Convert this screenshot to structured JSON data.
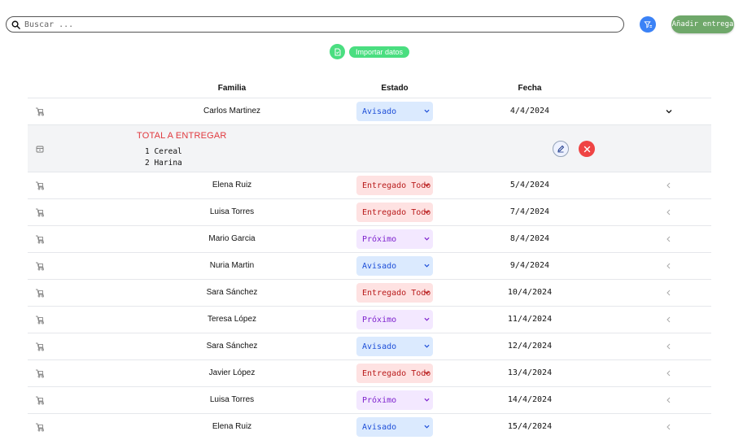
{
  "search": {
    "placeholder": "Buscar ..."
  },
  "toolbar": {
    "add_label": "Añadir entrega",
    "import_label": "Importar datos"
  },
  "table": {
    "headers": {
      "family": "Familia",
      "status": "Estado",
      "date": "Fecha"
    },
    "rows": [
      {
        "family": "Carlos Martinez",
        "status": "Avisado",
        "status_kind": "avisado",
        "date": "4/4/2024",
        "expanded": true
      },
      {
        "family": "Elena Ruiz",
        "status": "Entregado Todo",
        "status_kind": "entregado",
        "date": "5/4/2024"
      },
      {
        "family": "Luisa Torres",
        "status": "Entregado Todo",
        "status_kind": "entregado",
        "date": "7/4/2024"
      },
      {
        "family": "Mario Garcia",
        "status": "Próximo",
        "status_kind": "proximo",
        "date": "8/4/2024"
      },
      {
        "family": "Nuria Martin",
        "status": "Avisado",
        "status_kind": "avisado",
        "date": "9/4/2024"
      },
      {
        "family": "Sara Sánchez",
        "status": "Entregado Todo",
        "status_kind": "entregado",
        "date": "10/4/2024"
      },
      {
        "family": "Teresa López",
        "status": "Próximo",
        "status_kind": "proximo",
        "date": "11/4/2024"
      },
      {
        "family": "Sara Sánchez",
        "status": "Avisado",
        "status_kind": "avisado",
        "date": "12/4/2024"
      },
      {
        "family": "Javier López",
        "status": "Entregado Todo",
        "status_kind": "entregado",
        "date": "13/4/2024"
      },
      {
        "family": "Luisa Torres",
        "status": "Próximo",
        "status_kind": "proximo",
        "date": "14/4/2024"
      },
      {
        "family": "Elena Ruiz",
        "status": "Avisado",
        "status_kind": "avisado",
        "date": "15/4/2024"
      }
    ]
  },
  "detail": {
    "title": "TOTAL A ENTREGAR",
    "items": [
      "1 Cereal",
      "2 Harina"
    ]
  },
  "colors": {
    "add_button": "#6fa86a",
    "filter_button": "#3b82f6",
    "import_button": "#4ade80",
    "delete_button": "#ef4444",
    "total_title": "#e0393e"
  },
  "icons": {
    "search": "search-icon",
    "filter": "filter-icon",
    "import": "file-icon",
    "row": "delivery-cart-icon",
    "detail": "package-icon",
    "edit": "edit-icon",
    "delete": "close-icon",
    "expand": "chevron-down-icon",
    "collapse": "chevron-left-icon"
  }
}
